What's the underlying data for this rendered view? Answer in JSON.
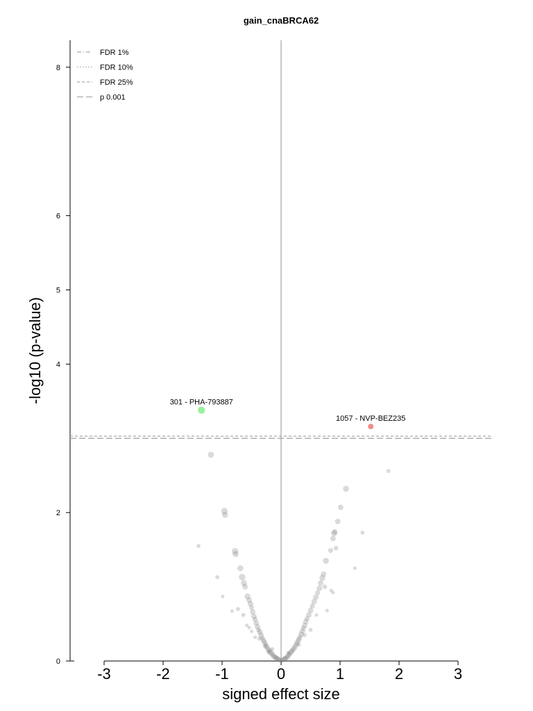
{
  "chart_data": {
    "type": "scatter",
    "title": "gain_cnaBRCA62",
    "xlabel": "signed effect size",
    "ylabel": "-log10 (p-value)",
    "xlim": [
      -3.6,
      3.6
    ],
    "ylim": [
      0,
      8.4
    ],
    "xticks": [
      -3,
      -2,
      -1,
      0,
      1,
      2,
      3
    ],
    "yticks": [
      0,
      2,
      4,
      5,
      6,
      8
    ],
    "xtick_labels": [
      "-3",
      "-2",
      "-1",
      "0",
      "1",
      "2",
      "3"
    ],
    "ytick_labels": [
      "0",
      "2",
      "4",
      "5",
      "6",
      "8"
    ],
    "vline_x": 0,
    "threshold_lines": [
      {
        "label": "FDR 1%",
        "style": "dashdot",
        "y": null
      },
      {
        "label": "FDR 10%",
        "style": "dotted",
        "y": null
      },
      {
        "label": "FDR 25%",
        "style": "dashed",
        "y": 3.03
      },
      {
        "label": "p 0.001",
        "style": "longdash",
        "y": 3.0
      }
    ],
    "legend_position": "top-left",
    "grid": false,
    "highlighted_points": [
      {
        "label": "301 - PHA-793887",
        "x": -1.35,
        "y": 3.38,
        "color": "#90ee90",
        "size": 1.3
      },
      {
        "label": "1057 - NVP-BEZ235",
        "x": 1.52,
        "y": 3.16,
        "color": "#f08080",
        "size": 1.0
      }
    ],
    "points_color": "#7a7a7a",
    "points": [
      [
        -1.19,
        2.78,
        1.2
      ],
      [
        -0.96,
        2.02,
        1.3
      ],
      [
        -0.95,
        1.97,
        1.2
      ],
      [
        -1.4,
        1.55,
        0.8
      ],
      [
        -0.78,
        1.48,
        1.3
      ],
      [
        -0.77,
        1.44,
        1.2
      ],
      [
        -1.08,
        1.13,
        0.8
      ],
      [
        -0.69,
        1.25,
        1.2
      ],
      [
        -0.66,
        1.13,
        1.3
      ],
      [
        -0.63,
        1.05,
        1.2
      ],
      [
        -0.61,
        1.0,
        1.1
      ],
      [
        -0.99,
        0.87,
        0.7
      ],
      [
        -0.57,
        0.87,
        1.2
      ],
      [
        -0.54,
        0.82,
        1.1
      ],
      [
        -0.52,
        0.77,
        1.1
      ],
      [
        -0.5,
        0.72,
        1.0
      ],
      [
        -0.73,
        0.7,
        0.8
      ],
      [
        -0.64,
        0.62,
        0.8
      ],
      [
        -0.48,
        0.66,
        1.1
      ],
      [
        -0.46,
        0.6,
        1.1
      ],
      [
        -0.44,
        0.56,
        1.0
      ],
      [
        -0.58,
        0.48,
        0.7
      ],
      [
        -0.42,
        0.51,
        1.1
      ],
      [
        -0.4,
        0.46,
        1.1
      ],
      [
        -0.38,
        0.42,
        1.0
      ],
      [
        -0.5,
        0.4,
        0.7
      ],
      [
        -0.36,
        0.39,
        1.1
      ],
      [
        -0.34,
        0.35,
        1.1
      ],
      [
        -0.32,
        0.31,
        1.0
      ],
      [
        -0.44,
        0.32,
        0.7
      ],
      [
        -0.3,
        0.28,
        1.1
      ],
      [
        -0.28,
        0.25,
        1.1
      ],
      [
        -0.26,
        0.22,
        1.0
      ],
      [
        -0.24,
        0.19,
        1.1
      ],
      [
        -0.22,
        0.16,
        1.1
      ],
      [
        -0.2,
        0.14,
        1.0
      ],
      [
        -0.18,
        0.12,
        1.1
      ],
      [
        -0.16,
        0.1,
        1.1
      ],
      [
        -0.14,
        0.08,
        1.0
      ],
      [
        -0.12,
        0.06,
        1.1
      ],
      [
        -0.1,
        0.05,
        1.1
      ],
      [
        -0.08,
        0.04,
        1.0
      ],
      [
        -0.06,
        0.03,
        1.1
      ],
      [
        -0.04,
        0.02,
        1.0
      ],
      [
        -0.02,
        0.01,
        1.0
      ],
      [
        -0.37,
        0.3,
        0.8
      ],
      [
        -0.27,
        0.2,
        0.9
      ],
      [
        -0.21,
        0.12,
        0.9
      ],
      [
        0.02,
        0.01,
        1.0
      ],
      [
        0.04,
        0.02,
        1.0
      ],
      [
        0.06,
        0.03,
        1.1
      ],
      [
        0.08,
        0.04,
        1.0
      ],
      [
        0.1,
        0.05,
        1.1
      ],
      [
        0.12,
        0.07,
        1.1
      ],
      [
        0.14,
        0.09,
        1.0
      ],
      [
        0.16,
        0.11,
        1.1
      ],
      [
        0.18,
        0.13,
        1.1
      ],
      [
        0.2,
        0.15,
        1.0
      ],
      [
        0.22,
        0.17,
        1.1
      ],
      [
        0.24,
        0.2,
        1.1
      ],
      [
        0.26,
        0.23,
        1.0
      ],
      [
        0.28,
        0.26,
        1.1
      ],
      [
        0.3,
        0.29,
        1.1
      ],
      [
        0.32,
        0.32,
        1.0
      ],
      [
        0.34,
        0.36,
        1.1
      ],
      [
        0.36,
        0.4,
        1.1
      ],
      [
        0.38,
        0.44,
        1.0
      ],
      [
        0.4,
        0.48,
        1.1
      ],
      [
        0.42,
        0.53,
        1.1
      ],
      [
        0.44,
        0.57,
        1.0
      ],
      [
        0.47,
        0.62,
        1.1
      ],
      [
        0.5,
        0.68,
        1.1
      ],
      [
        0.53,
        0.74,
        1.0
      ],
      [
        0.56,
        0.8,
        1.1
      ],
      [
        0.59,
        0.86,
        1.1
      ],
      [
        0.62,
        0.92,
        1.0
      ],
      [
        0.65,
        0.98,
        1.1
      ],
      [
        0.67,
        1.05,
        1.1
      ],
      [
        0.7,
        1.12,
        1.2
      ],
      [
        0.72,
        1.17,
        1.1
      ],
      [
        0.76,
        1.35,
        1.2
      ],
      [
        0.85,
        0.95,
        0.7
      ],
      [
        0.88,
        0.92,
        0.7
      ],
      [
        0.78,
        0.68,
        0.7
      ],
      [
        0.6,
        0.62,
        0.7
      ],
      [
        0.5,
        0.42,
        0.8
      ],
      [
        0.4,
        0.35,
        0.8
      ],
      [
        0.3,
        0.22,
        0.8
      ],
      [
        0.84,
        1.49,
        1.0
      ],
      [
        0.88,
        1.65,
        1.1
      ],
      [
        0.9,
        1.72,
        1.2
      ],
      [
        0.91,
        1.74,
        1.1
      ],
      [
        0.96,
        1.88,
        1.1
      ],
      [
        1.01,
        2.07,
        1.1
      ],
      [
        1.1,
        2.32,
        1.2
      ],
      [
        0.93,
        1.52,
        0.9
      ],
      [
        1.38,
        1.73,
        0.8
      ],
      [
        1.25,
        1.25,
        0.7
      ],
      [
        1.82,
        2.56,
        0.8
      ],
      [
        0.74,
        1.0,
        0.9
      ],
      [
        -0.83,
        0.67,
        0.7
      ],
      [
        -0.54,
        0.45,
        0.7
      ],
      [
        -0.15,
        0.16,
        0.8
      ],
      [
        0.12,
        0.11,
        0.8
      ]
    ]
  }
}
